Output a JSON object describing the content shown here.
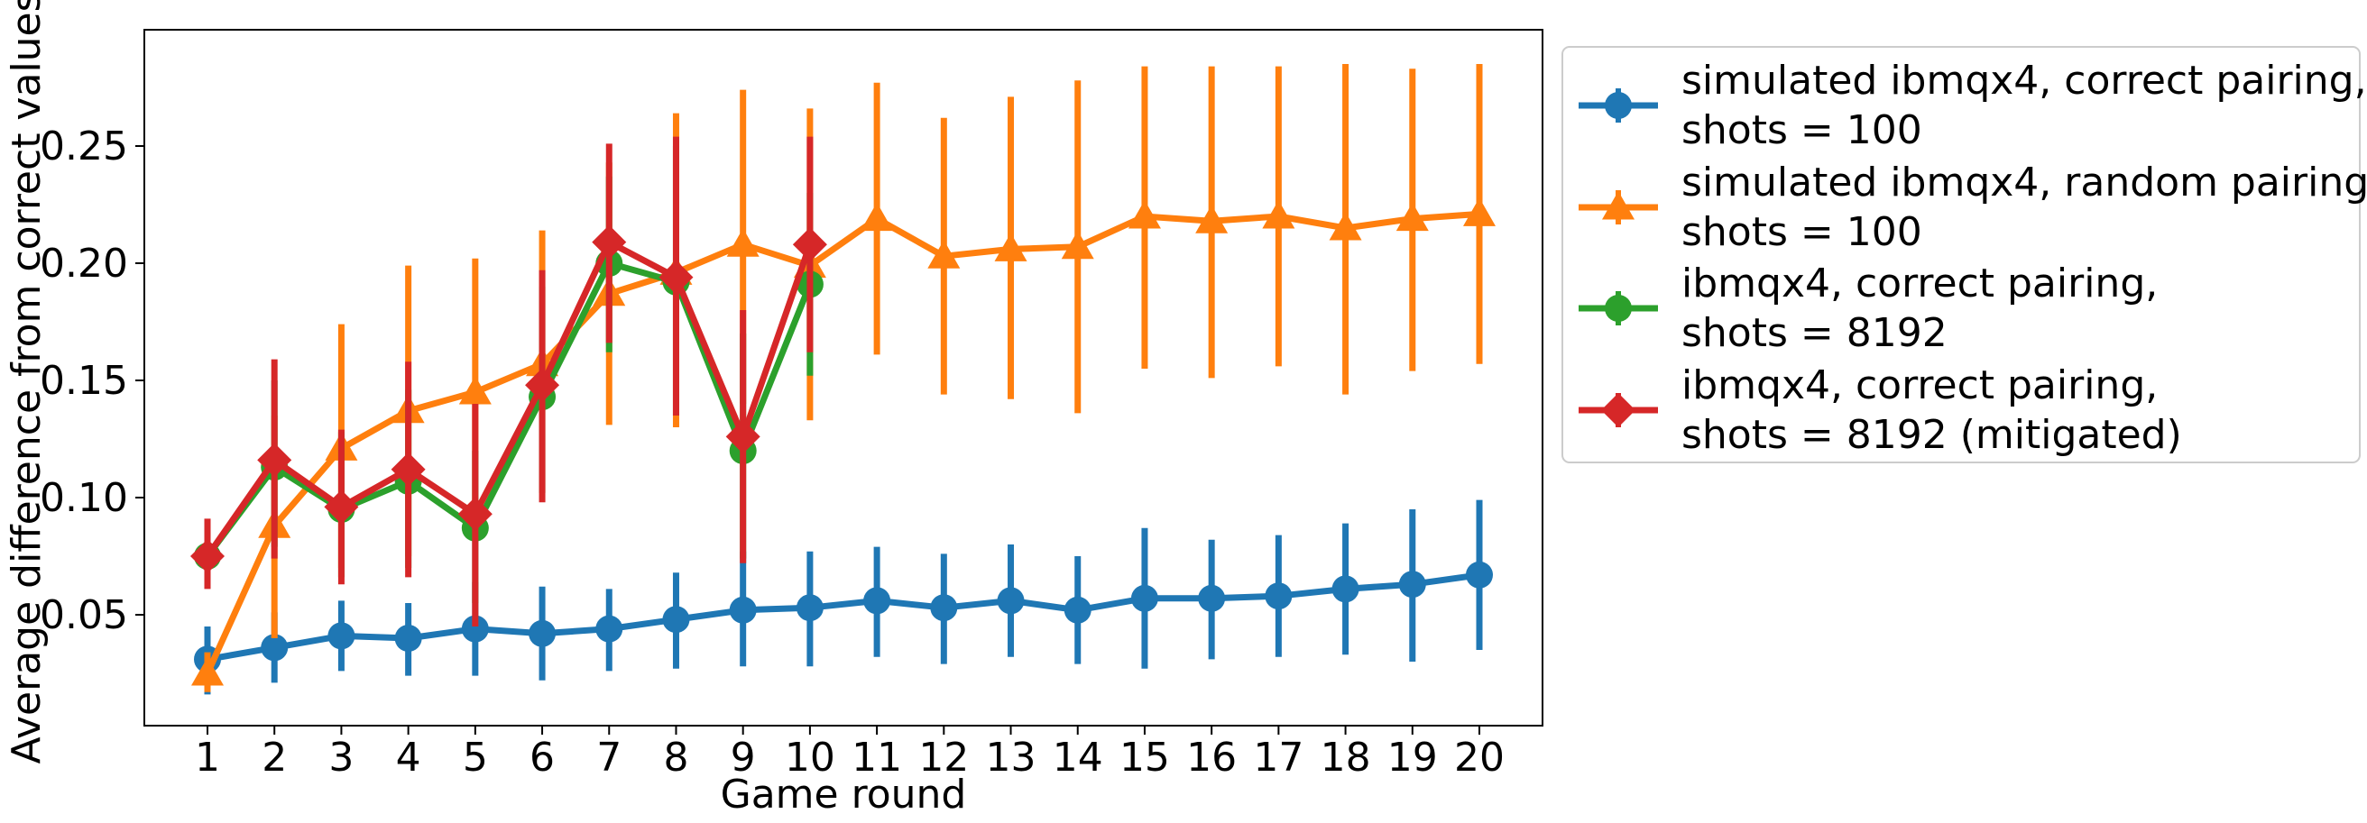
{
  "chart_data": {
    "type": "line",
    "title": "",
    "xlabel": "Game round",
    "ylabel": "Average difference from correct values",
    "xlim": [
      0,
      21
    ],
    "ylim": [
      0.0,
      0.3
    ],
    "x_ticks": [
      1,
      2,
      3,
      4,
      5,
      6,
      7,
      8,
      9,
      10,
      11,
      12,
      13,
      14,
      15,
      16,
      17,
      18,
      19,
      20
    ],
    "y_ticks": [
      0.05,
      0.1,
      0.15,
      0.2,
      0.25
    ],
    "y_tick_labels": [
      "0.05",
      "0.10",
      "0.15",
      "0.20",
      "0.25"
    ],
    "grid": false,
    "legend_position": "outside-right-top",
    "series": [
      {
        "name_lines": [
          "simulated ibmqx4, correct pairing,",
          "shots = 100"
        ],
        "color": "#1f77b4",
        "marker": "circle",
        "x": [
          1,
          2,
          3,
          4,
          5,
          6,
          7,
          8,
          9,
          10,
          11,
          12,
          13,
          14,
          15,
          16,
          17,
          18,
          19,
          20
        ],
        "values": [
          0.031,
          0.036,
          0.041,
          0.04,
          0.044,
          0.042,
          0.044,
          0.048,
          0.052,
          0.053,
          0.056,
          0.053,
          0.056,
          0.052,
          0.057,
          0.057,
          0.058,
          0.061,
          0.063,
          0.067
        ],
        "err_low": [
          0.016,
          0.021,
          0.026,
          0.024,
          0.024,
          0.022,
          0.026,
          0.027,
          0.028,
          0.028,
          0.032,
          0.029,
          0.032,
          0.029,
          0.027,
          0.031,
          0.032,
          0.033,
          0.03,
          0.035
        ],
        "err_high": [
          0.045,
          0.051,
          0.056,
          0.055,
          0.064,
          0.062,
          0.061,
          0.068,
          0.077,
          0.077,
          0.079,
          0.076,
          0.08,
          0.075,
          0.087,
          0.082,
          0.084,
          0.089,
          0.095,
          0.099
        ]
      },
      {
        "name_lines": [
          "simulated ibmqx4, random pairing,",
          "shots = 100"
        ],
        "color": "#ff7f0e",
        "marker": "triangle",
        "x": [
          1,
          2,
          3,
          4,
          5,
          6,
          7,
          8,
          9,
          10,
          11,
          12,
          13,
          14,
          15,
          16,
          17,
          18,
          19,
          20
        ],
        "values": [
          0.025,
          0.088,
          0.121,
          0.137,
          0.145,
          0.157,
          0.187,
          0.196,
          0.208,
          0.199,
          0.219,
          0.203,
          0.206,
          0.207,
          0.22,
          0.218,
          0.22,
          0.215,
          0.219,
          0.221
        ],
        "err_low": [
          0.017,
          0.04,
          0.07,
          0.075,
          0.09,
          0.102,
          0.131,
          0.13,
          0.14,
          0.133,
          0.161,
          0.144,
          0.142,
          0.136,
          0.155,
          0.151,
          0.156,
          0.144,
          0.154,
          0.157
        ],
        "err_high": [
          0.034,
          0.135,
          0.174,
          0.199,
          0.202,
          0.214,
          0.243,
          0.264,
          0.274,
          0.266,
          0.277,
          0.262,
          0.271,
          0.278,
          0.284,
          0.284,
          0.284,
          0.285,
          0.283,
          0.285
        ]
      },
      {
        "name_lines": [
          "ibmqx4, correct pairing,",
          "shots = 8192"
        ],
        "color": "#2ca02c",
        "marker": "circle",
        "x": [
          1,
          2,
          3,
          4,
          5,
          6,
          7,
          8,
          9,
          10
        ],
        "values": [
          0.075,
          0.113,
          0.095,
          0.107,
          0.087,
          0.143,
          0.2,
          0.192,
          0.12,
          0.191
        ],
        "err_low": [
          0.062,
          0.079,
          0.066,
          0.07,
          0.055,
          0.102,
          0.162,
          0.135,
          0.074,
          0.152
        ],
        "err_high": [
          0.089,
          0.15,
          0.128,
          0.146,
          0.12,
          0.19,
          0.237,
          0.25,
          0.17,
          0.23
        ]
      },
      {
        "name_lines": [
          "ibmqx4, correct pairing,",
          "shots = 8192 (mitigated)"
        ],
        "color": "#d62728",
        "marker": "diamond",
        "x": [
          1,
          2,
          3,
          4,
          5,
          6,
          7,
          8,
          9,
          10
        ],
        "values": [
          0.075,
          0.116,
          0.096,
          0.112,
          0.093,
          0.148,
          0.209,
          0.194,
          0.126,
          0.208
        ],
        "err_low": [
          0.061,
          0.074,
          0.063,
          0.066,
          0.045,
          0.098,
          0.166,
          0.135,
          0.072,
          0.162
        ],
        "err_high": [
          0.091,
          0.159,
          0.129,
          0.158,
          0.14,
          0.197,
          0.251,
          0.254,
          0.18,
          0.254
        ]
      }
    ]
  }
}
